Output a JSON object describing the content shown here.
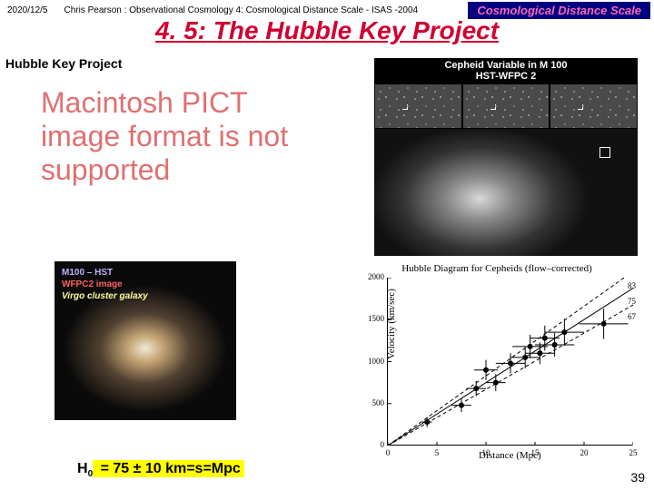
{
  "header": {
    "date": "2020/12/5",
    "author": "Chris Pearson :  Observational Cosmology 4: Cosmological Distance Scale -  ISAS -2004",
    "badge": "Cosmological Distance Scale"
  },
  "title": "4. 5: The Hubble Key Project",
  "subtitle": "Hubble Key Project",
  "pict_msg": "Macintosh PICT image format is not supported",
  "cepheid": {
    "title_l1": "Cepheid Variable in M 100",
    "title_l2": "HST-WFPC 2"
  },
  "m100": {
    "l1": "M100 – HST",
    "l2": "WFPC2 image",
    "l3": "Virgo cluster galaxy"
  },
  "plot": {
    "title": "Hubble Diagram for Cepheids (flow–corrected)",
    "ylabel": "Velocity (km/sec)",
    "xlabel": "Distance (Mpc)",
    "xlim": [
      0,
      25
    ],
    "ylim": [
      0,
      2000
    ],
    "xticks": [
      0,
      5,
      10,
      15,
      20,
      25
    ],
    "yticks": [
      0,
      500,
      1000,
      1500,
      2000
    ],
    "fits": [
      {
        "slope": 83,
        "label": "83"
      },
      {
        "slope": 75,
        "label": "75"
      },
      {
        "slope": 67,
        "label": "67"
      }
    ],
    "points": [
      {
        "x": 4,
        "y": 280,
        "ex": 0.5,
        "ey": 60
      },
      {
        "x": 7.5,
        "y": 480,
        "ex": 1.0,
        "ey": 80
      },
      {
        "x": 9,
        "y": 680,
        "ex": 1.0,
        "ey": 90
      },
      {
        "x": 10,
        "y": 900,
        "ex": 1.2,
        "ey": 120
      },
      {
        "x": 11,
        "y": 750,
        "ex": 1.0,
        "ey": 100
      },
      {
        "x": 12.5,
        "y": 980,
        "ex": 1.5,
        "ey": 120
      },
      {
        "x": 14,
        "y": 1050,
        "ex": 1.5,
        "ey": 130
      },
      {
        "x": 14.5,
        "y": 1180,
        "ex": 1.8,
        "ey": 140
      },
      {
        "x": 15.5,
        "y": 1100,
        "ex": 1.5,
        "ey": 130
      },
      {
        "x": 16,
        "y": 1280,
        "ex": 1.5,
        "ey": 150
      },
      {
        "x": 17,
        "y": 1200,
        "ex": 2.0,
        "ey": 140
      },
      {
        "x": 18,
        "y": 1350,
        "ex": 2.0,
        "ey": 160
      },
      {
        "x": 22,
        "y": 1450,
        "ex": 2.5,
        "ey": 180
      }
    ],
    "point_color": "#000000",
    "line_color": "#000000",
    "marker_size": 3
  },
  "equation": {
    "prefix": "H",
    "sub": "0",
    "body": " = 75 ± 10 km=s=Mpc"
  },
  "page_num": "39"
}
